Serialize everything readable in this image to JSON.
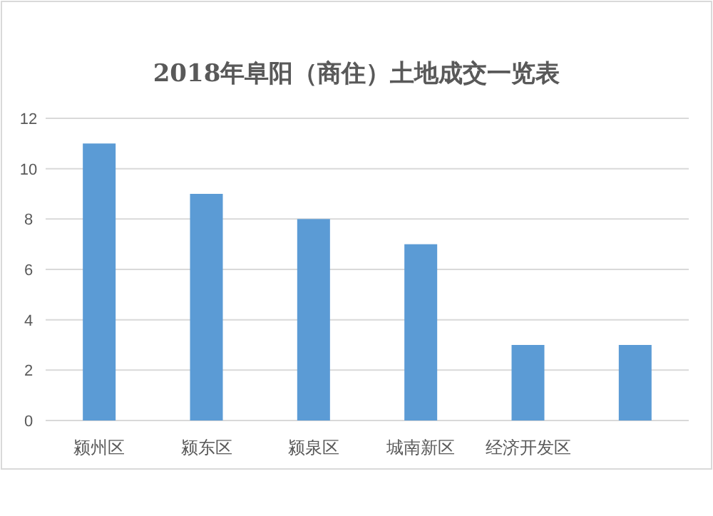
{
  "chart_data": {
    "type": "bar",
    "title": "2018年阜阳（商住）土地成交一览表",
    "categories": [
      "颍州区",
      "颍东区",
      "颍泉区",
      "城南新区",
      "经济开发区",
      null
    ],
    "values": [
      11,
      9,
      8,
      7,
      3,
      3
    ],
    "color": "#5b9bd5",
    "ylim": [
      0,
      12
    ],
    "yticks": [
      0,
      2,
      4,
      6,
      8,
      10,
      12
    ],
    "grid": "y"
  }
}
